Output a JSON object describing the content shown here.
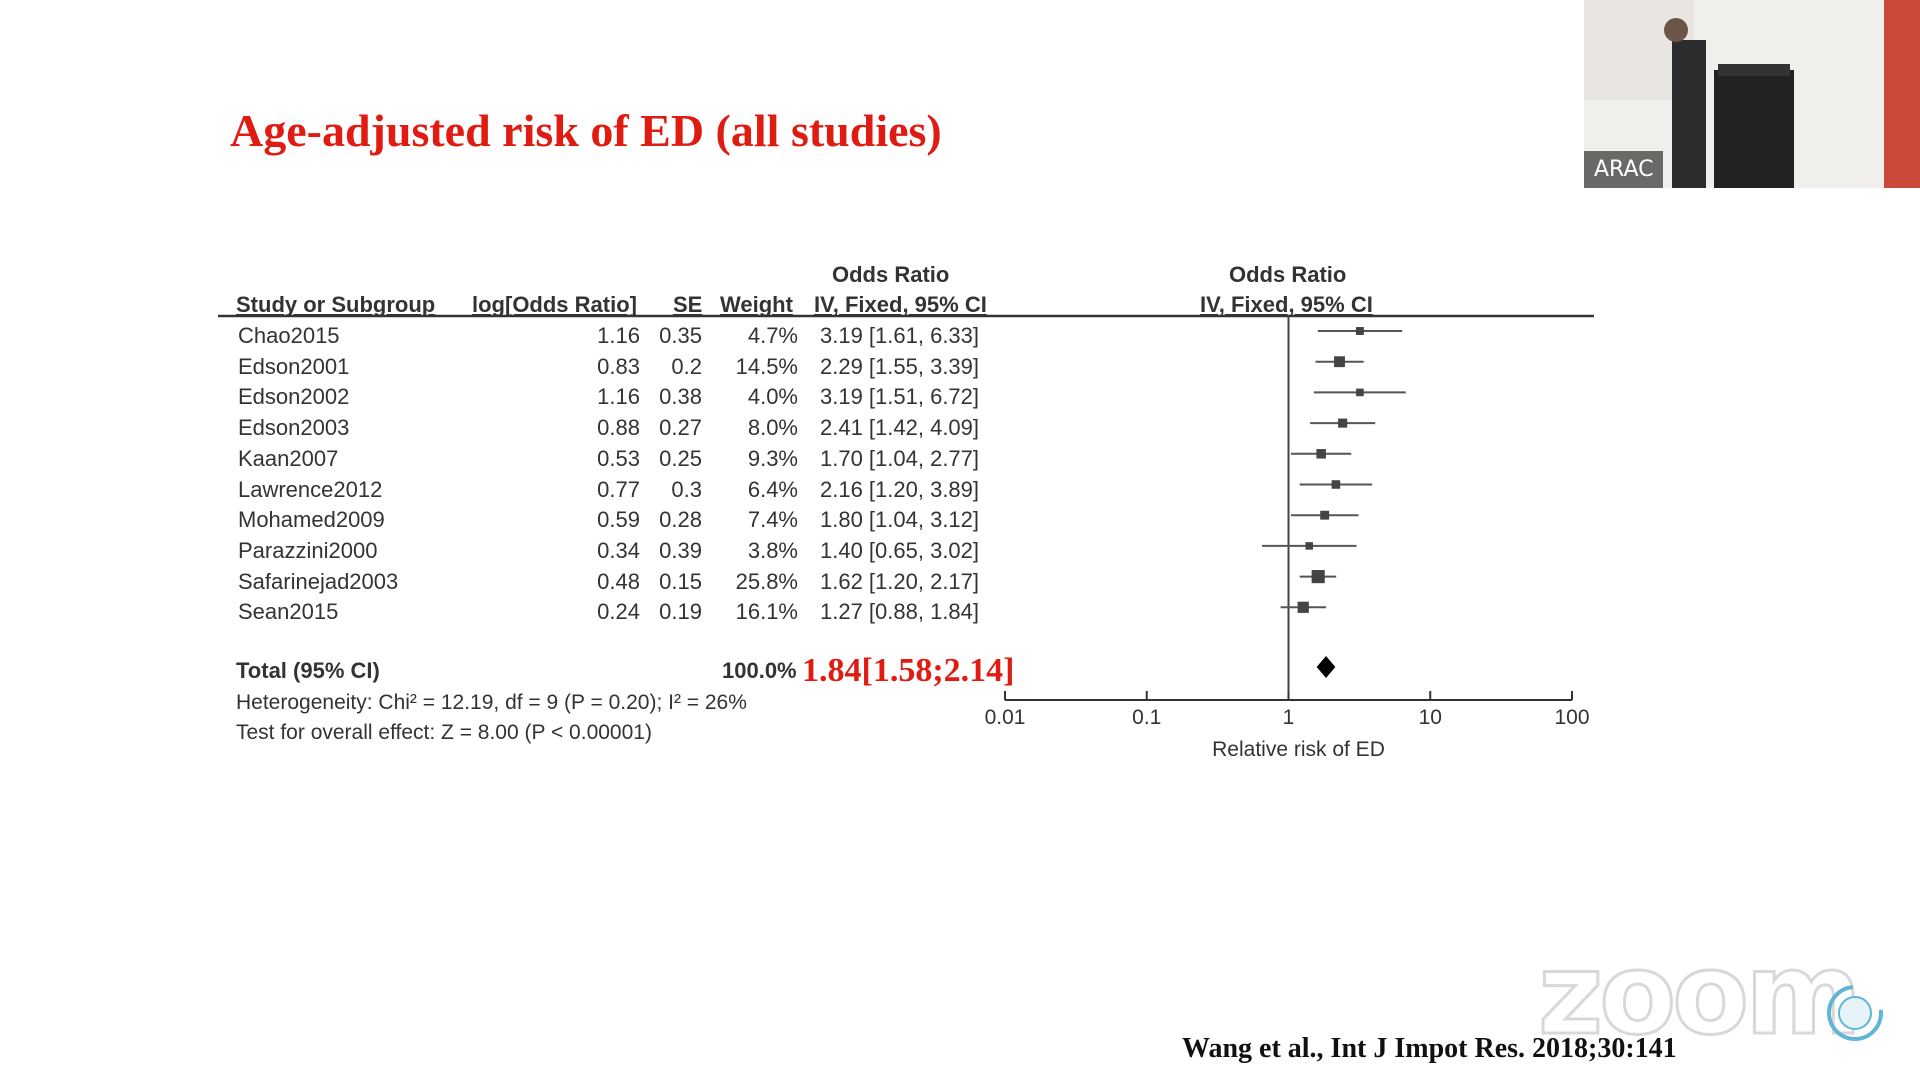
{
  "slide": {
    "title": "Age-adjusted risk of ED (all studies)",
    "citation": "Wang et al.,  Int J Impot Res. 2018;30:141"
  },
  "forest": {
    "header_top_left": "Odds Ratio",
    "header_top_right": "Odds Ratio",
    "columns": {
      "study": "Study or Subgroup",
      "log_or": "log[Odds Ratio]",
      "se": "SE",
      "weight": "Weight",
      "ci": "IV, Fixed, 95% CI",
      "plot_ci": "IV, Fixed, 95% CI"
    },
    "studies": [
      {
        "name": "Chao2015",
        "log_or": "1.16",
        "se": "0.35",
        "weight": "4.7%",
        "ci": "3.19 [1.61, 6.33]"
      },
      {
        "name": "Edson2001",
        "log_or": "0.83",
        "se": "0.2",
        "weight": "14.5%",
        "ci": "2.29 [1.55, 3.39]"
      },
      {
        "name": "Edson2002",
        "log_or": "1.16",
        "se": "0.38",
        "weight": "4.0%",
        "ci": "3.19 [1.51, 6.72]"
      },
      {
        "name": "Edson2003",
        "log_or": "0.88",
        "se": "0.27",
        "weight": "8.0%",
        "ci": "2.41 [1.42, 4.09]"
      },
      {
        "name": "Kaan2007",
        "log_or": "0.53",
        "se": "0.25",
        "weight": "9.3%",
        "ci": "1.70 [1.04, 2.77]"
      },
      {
        "name": "Lawrence2012",
        "log_or": "0.77",
        "se": "0.3",
        "weight": "6.4%",
        "ci": "2.16 [1.20, 3.89]"
      },
      {
        "name": "Mohamed2009",
        "log_or": "0.59",
        "se": "0.28",
        "weight": "7.4%",
        "ci": "1.80 [1.04, 3.12]"
      },
      {
        "name": "Parazzini2000",
        "log_or": "0.34",
        "se": "0.39",
        "weight": "3.8%",
        "ci": "1.40 [0.65, 3.02]"
      },
      {
        "name": "Safarinejad2003",
        "log_or": "0.48",
        "se": "0.15",
        "weight": "25.8%",
        "ci": "1.62 [1.20, 2.17]"
      },
      {
        "name": "Sean2015",
        "log_or": "0.24",
        "se": "0.19",
        "weight": "16.1%",
        "ci": "1.27 [0.88, 1.84]"
      }
    ],
    "total_label": "Total (95% CI)",
    "total_weight": "100.0%",
    "total_or": "1.84[1.58;2.14]",
    "heterogeneity": "Heterogeneity: Chi² = 12.19, df = 9 (P = 0.20); I² = 26%",
    "overall_effect": "Test for overall effect: Z = 8.00 (P < 0.00001)",
    "axis_label": "Relative risk of ED",
    "ticks": [
      "0.01",
      "0.1",
      "1",
      "10",
      "100"
    ]
  },
  "chart_data": {
    "type": "scatter",
    "scale": "log",
    "xlim": [
      0.01,
      100
    ],
    "xlabel": "Relative risk of ED",
    "reference_line": 1,
    "points": [
      {
        "study": "Chao2015",
        "or": 3.19,
        "lo": 1.61,
        "hi": 6.33,
        "weight": 4.7
      },
      {
        "study": "Edson2001",
        "or": 2.29,
        "lo": 1.55,
        "hi": 3.39,
        "weight": 14.5
      },
      {
        "study": "Edson2002",
        "or": 3.19,
        "lo": 1.51,
        "hi": 6.72,
        "weight": 4.0
      },
      {
        "study": "Edson2003",
        "or": 2.41,
        "lo": 1.42,
        "hi": 4.09,
        "weight": 8.0
      },
      {
        "study": "Kaan2007",
        "or": 1.7,
        "lo": 1.04,
        "hi": 2.77,
        "weight": 9.3
      },
      {
        "study": "Lawrence2012",
        "or": 2.16,
        "lo": 1.2,
        "hi": 3.89,
        "weight": 6.4
      },
      {
        "study": "Mohamed2009",
        "or": 1.8,
        "lo": 1.04,
        "hi": 3.12,
        "weight": 7.4
      },
      {
        "study": "Parazzini2000",
        "or": 1.4,
        "lo": 0.65,
        "hi": 3.02,
        "weight": 3.8
      },
      {
        "study": "Safarinejad2003",
        "or": 1.62,
        "lo": 1.2,
        "hi": 2.17,
        "weight": 25.8
      },
      {
        "study": "Sean2015",
        "or": 1.27,
        "lo": 0.88,
        "hi": 1.84,
        "weight": 16.1
      }
    ],
    "total": {
      "or": 1.84,
      "lo": 1.58,
      "hi": 2.14
    }
  },
  "overlay": {
    "zoom_watermark": "zoom",
    "participant_name": "ARAC"
  }
}
